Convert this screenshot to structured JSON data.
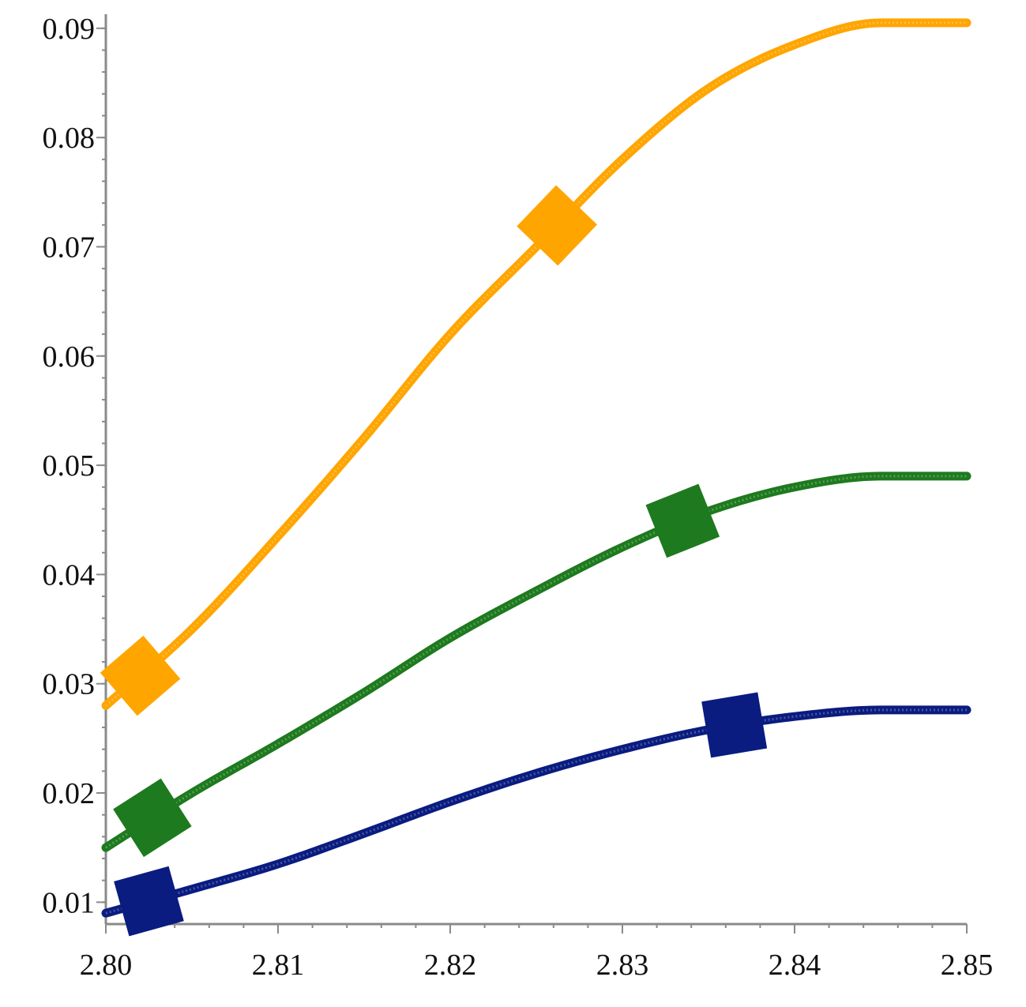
{
  "chart_data": {
    "type": "line",
    "title": "",
    "xlabel": "",
    "ylabel": "",
    "xlim": [
      2.8,
      2.85
    ],
    "ylim": [
      0.008,
      0.091
    ],
    "x_ticks": [
      "2.80",
      "2.81",
      "2.82",
      "2.83",
      "2.84",
      "2.85"
    ],
    "y_ticks": [
      "0.01",
      "0.02",
      "0.03",
      "0.04",
      "0.05",
      "0.06",
      "0.07",
      "0.08",
      "0.09"
    ],
    "grid": false,
    "legend": "none",
    "series": [
      {
        "color": "#FFA500",
        "marker": "square",
        "x": [
          2.8,
          2.805,
          2.81,
          2.815,
          2.82,
          2.825,
          2.83,
          2.835,
          2.84,
          2.845,
          2.85
        ],
        "y": [
          0.028,
          0.035,
          0.0435,
          0.0525,
          0.062,
          0.07,
          0.078,
          0.0845,
          0.0885,
          0.0905,
          0.0905
        ],
        "markers_at_x": [
          2.802,
          2.8262
        ]
      },
      {
        "color": "#1E7A1E",
        "marker": "square",
        "x": [
          2.8,
          2.805,
          2.81,
          2.815,
          2.82,
          2.825,
          2.83,
          2.835,
          2.84,
          2.845,
          2.85
        ],
        "y": [
          0.015,
          0.02,
          0.0245,
          0.0292,
          0.0342,
          0.0385,
          0.0425,
          0.0458,
          0.048,
          0.049,
          0.049
        ],
        "markers_at_x": [
          2.8027,
          2.8335
        ]
      },
      {
        "color": "#0A1C80",
        "marker": "square",
        "x": [
          2.8,
          2.805,
          2.81,
          2.815,
          2.82,
          2.825,
          2.83,
          2.835,
          2.84,
          2.845,
          2.85
        ],
        "y": [
          0.009,
          0.0112,
          0.0135,
          0.0163,
          0.0192,
          0.0218,
          0.024,
          0.0258,
          0.027,
          0.0276,
          0.0276
        ],
        "markers_at_x": [
          2.8025,
          2.8365
        ]
      }
    ]
  }
}
